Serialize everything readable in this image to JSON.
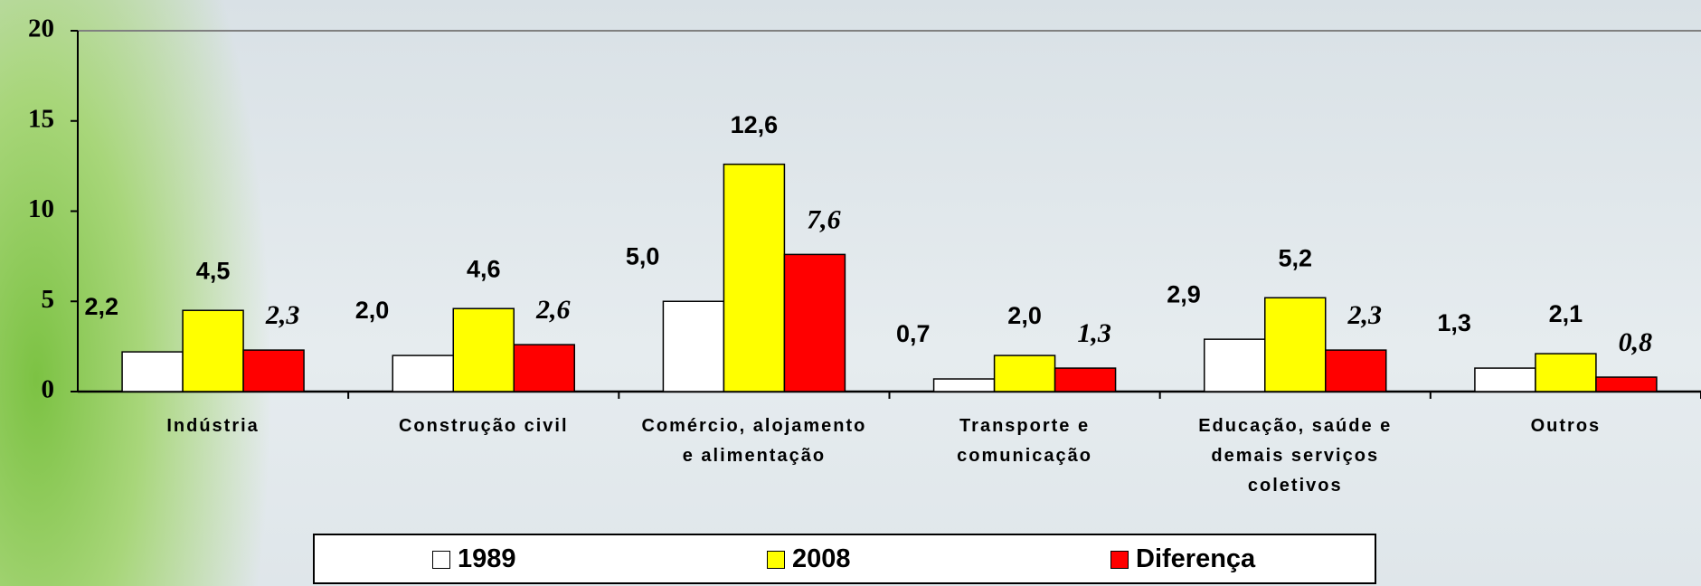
{
  "chart_data": {
    "type": "bar",
    "categories": [
      "Indústria",
      "Construção civil",
      "Comércio, alojamento e alimentação",
      "Transporte e comunicação",
      "Educação, saúde e demais serviços coletivos",
      "Outros"
    ],
    "series": [
      {
        "name": "1989",
        "color": "#ffffff",
        "values": [
          2.2,
          2.0,
          5.0,
          0.7,
          2.9,
          1.3
        ],
        "value_labels": [
          "2,2",
          "2,0",
          "5,0",
          "0,7",
          "2,9",
          "1,3"
        ]
      },
      {
        "name": "2008",
        "color": "#ffff00",
        "values": [
          4.5,
          4.6,
          12.6,
          2.0,
          5.2,
          2.1
        ],
        "value_labels": [
          "4,5",
          "4,6",
          "12,6",
          "2,0",
          "5,2",
          "2,1"
        ]
      },
      {
        "name": "Diferença",
        "color": "#ff0000",
        "values": [
          2.3,
          2.6,
          7.6,
          1.3,
          2.3,
          0.8
        ],
        "value_labels": [
          "2,3",
          "2,6",
          "7,6",
          "1,3",
          "2,3",
          "0,8"
        ]
      }
    ],
    "ylim": [
      0,
      20
    ],
    "yticks": [
      0,
      5,
      10,
      15,
      20
    ],
    "legend": "bottom"
  }
}
